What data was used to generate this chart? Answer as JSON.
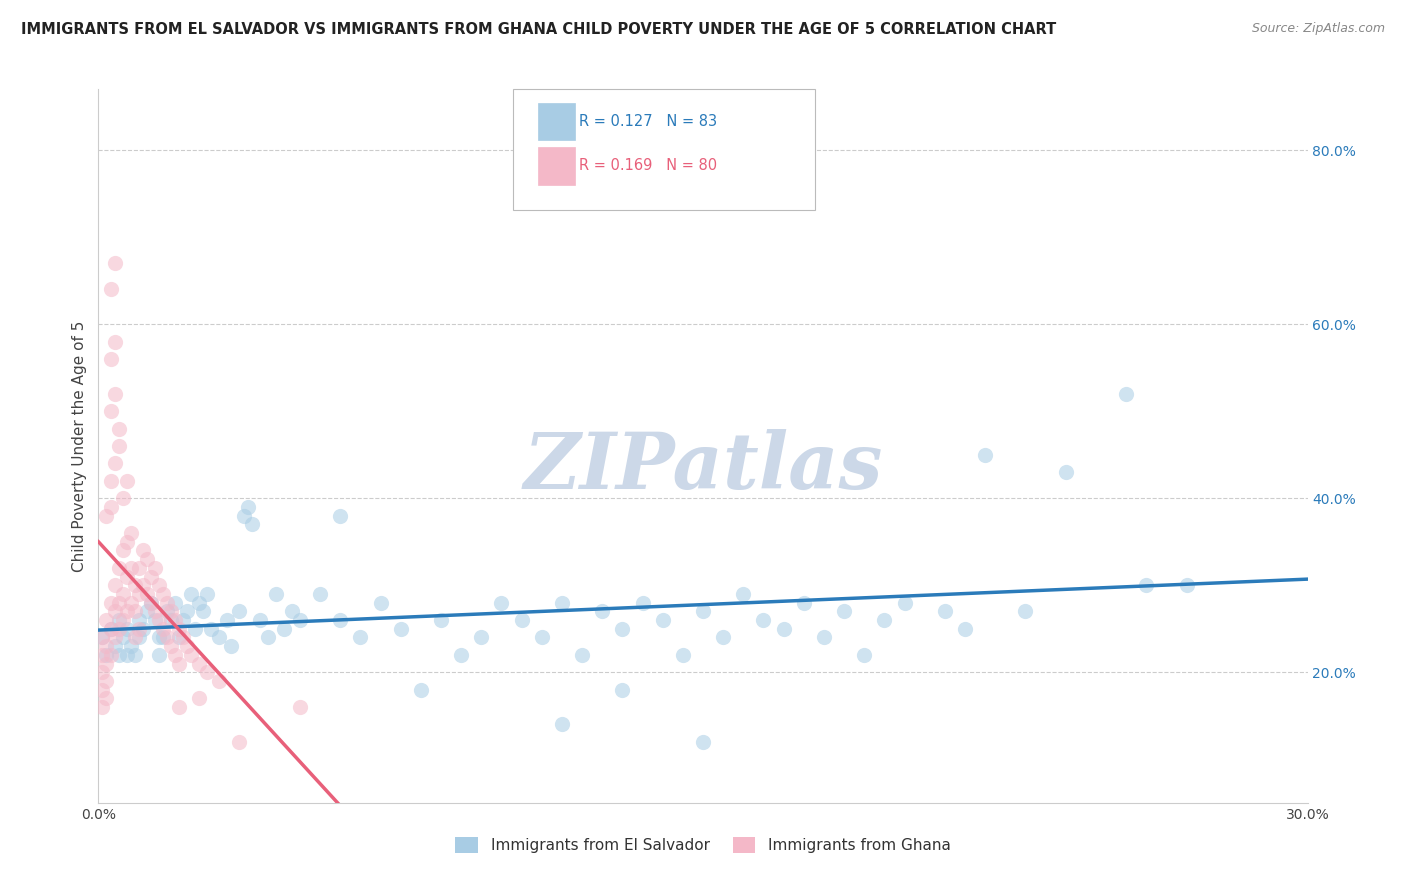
{
  "title": "IMMIGRANTS FROM EL SALVADOR VS IMMIGRANTS FROM GHANA CHILD POVERTY UNDER THE AGE OF 5 CORRELATION CHART",
  "source": "Source: ZipAtlas.com",
  "ylabel": "Child Poverty Under the Age of 5",
  "xlim": [
    0.0,
    0.3
  ],
  "ylim": [
    0.05,
    0.87
  ],
  "ytick_vals": [
    0.2,
    0.4,
    0.6,
    0.8
  ],
  "xtick_vals": [
    0.0,
    0.05,
    0.1,
    0.15,
    0.2,
    0.25,
    0.3
  ],
  "xtick_labels": [
    "0.0%",
    "",
    "",
    "",
    "",
    "",
    "30.0%"
  ],
  "legend_label_blue": "Immigrants from El Salvador",
  "legend_label_pink": "Immigrants from Ghana",
  "blue_color": "#a8cce4",
  "pink_color": "#f4b8c8",
  "blue_line_color": "#2b7bba",
  "pink_line_color": "#e8607a",
  "watermark": "ZIPatlas",
  "watermark_color": "#ccd8e8",
  "scatter_blue": [
    [
      0.001,
      0.24
    ],
    [
      0.002,
      0.22
    ],
    [
      0.003,
      0.25
    ],
    [
      0.004,
      0.23
    ],
    [
      0.005,
      0.26
    ],
    [
      0.005,
      0.22
    ],
    [
      0.006,
      0.24
    ],
    [
      0.007,
      0.25
    ],
    [
      0.007,
      0.22
    ],
    [
      0.008,
      0.23
    ],
    [
      0.009,
      0.22
    ],
    [
      0.01,
      0.26
    ],
    [
      0.01,
      0.24
    ],
    [
      0.011,
      0.25
    ],
    [
      0.012,
      0.27
    ],
    [
      0.013,
      0.28
    ],
    [
      0.014,
      0.26
    ],
    [
      0.015,
      0.24
    ],
    [
      0.015,
      0.22
    ],
    [
      0.016,
      0.24
    ],
    [
      0.017,
      0.27
    ],
    [
      0.018,
      0.26
    ],
    [
      0.019,
      0.28
    ],
    [
      0.02,
      0.24
    ],
    [
      0.021,
      0.26
    ],
    [
      0.022,
      0.27
    ],
    [
      0.023,
      0.29
    ],
    [
      0.024,
      0.25
    ],
    [
      0.025,
      0.28
    ],
    [
      0.026,
      0.27
    ],
    [
      0.027,
      0.29
    ],
    [
      0.028,
      0.25
    ],
    [
      0.03,
      0.24
    ],
    [
      0.032,
      0.26
    ],
    [
      0.033,
      0.23
    ],
    [
      0.035,
      0.27
    ],
    [
      0.036,
      0.38
    ],
    [
      0.037,
      0.39
    ],
    [
      0.038,
      0.37
    ],
    [
      0.04,
      0.26
    ],
    [
      0.042,
      0.24
    ],
    [
      0.044,
      0.29
    ],
    [
      0.046,
      0.25
    ],
    [
      0.048,
      0.27
    ],
    [
      0.05,
      0.26
    ],
    [
      0.055,
      0.29
    ],
    [
      0.06,
      0.38
    ],
    [
      0.06,
      0.26
    ],
    [
      0.065,
      0.24
    ],
    [
      0.07,
      0.28
    ],
    [
      0.075,
      0.25
    ],
    [
      0.08,
      0.18
    ],
    [
      0.085,
      0.26
    ],
    [
      0.09,
      0.22
    ],
    [
      0.095,
      0.24
    ],
    [
      0.1,
      0.28
    ],
    [
      0.105,
      0.26
    ],
    [
      0.11,
      0.24
    ],
    [
      0.115,
      0.28
    ],
    [
      0.12,
      0.22
    ],
    [
      0.125,
      0.27
    ],
    [
      0.13,
      0.25
    ],
    [
      0.135,
      0.28
    ],
    [
      0.14,
      0.26
    ],
    [
      0.145,
      0.22
    ],
    [
      0.15,
      0.27
    ],
    [
      0.155,
      0.24
    ],
    [
      0.16,
      0.29
    ],
    [
      0.165,
      0.26
    ],
    [
      0.17,
      0.25
    ],
    [
      0.175,
      0.28
    ],
    [
      0.18,
      0.24
    ],
    [
      0.185,
      0.27
    ],
    [
      0.19,
      0.22
    ],
    [
      0.195,
      0.26
    ],
    [
      0.2,
      0.28
    ],
    [
      0.21,
      0.27
    ],
    [
      0.215,
      0.25
    ],
    [
      0.22,
      0.45
    ],
    [
      0.23,
      0.27
    ],
    [
      0.24,
      0.43
    ],
    [
      0.255,
      0.52
    ],
    [
      0.26,
      0.3
    ],
    [
      0.27,
      0.3
    ],
    [
      0.115,
      0.14
    ],
    [
      0.13,
      0.18
    ],
    [
      0.15,
      0.12
    ]
  ],
  "scatter_pink": [
    [
      0.001,
      0.24
    ],
    [
      0.001,
      0.22
    ],
    [
      0.001,
      0.2
    ],
    [
      0.001,
      0.18
    ],
    [
      0.002,
      0.26
    ],
    [
      0.002,
      0.23
    ],
    [
      0.002,
      0.21
    ],
    [
      0.002,
      0.19
    ],
    [
      0.003,
      0.28
    ],
    [
      0.003,
      0.25
    ],
    [
      0.003,
      0.22
    ],
    [
      0.004,
      0.3
    ],
    [
      0.004,
      0.27
    ],
    [
      0.004,
      0.24
    ],
    [
      0.005,
      0.32
    ],
    [
      0.005,
      0.28
    ],
    [
      0.005,
      0.25
    ],
    [
      0.006,
      0.34
    ],
    [
      0.006,
      0.29
    ],
    [
      0.006,
      0.26
    ],
    [
      0.007,
      0.35
    ],
    [
      0.007,
      0.31
    ],
    [
      0.007,
      0.27
    ],
    [
      0.008,
      0.36
    ],
    [
      0.008,
      0.32
    ],
    [
      0.008,
      0.28
    ],
    [
      0.009,
      0.3
    ],
    [
      0.009,
      0.27
    ],
    [
      0.009,
      0.24
    ],
    [
      0.01,
      0.32
    ],
    [
      0.01,
      0.29
    ],
    [
      0.01,
      0.25
    ],
    [
      0.011,
      0.34
    ],
    [
      0.011,
      0.3
    ],
    [
      0.012,
      0.33
    ],
    [
      0.012,
      0.29
    ],
    [
      0.013,
      0.31
    ],
    [
      0.013,
      0.28
    ],
    [
      0.014,
      0.32
    ],
    [
      0.014,
      0.27
    ],
    [
      0.015,
      0.3
    ],
    [
      0.015,
      0.26
    ],
    [
      0.016,
      0.29
    ],
    [
      0.016,
      0.25
    ],
    [
      0.017,
      0.28
    ],
    [
      0.017,
      0.24
    ],
    [
      0.018,
      0.27
    ],
    [
      0.018,
      0.23
    ],
    [
      0.019,
      0.26
    ],
    [
      0.019,
      0.22
    ],
    [
      0.02,
      0.25
    ],
    [
      0.02,
      0.21
    ],
    [
      0.021,
      0.24
    ],
    [
      0.022,
      0.23
    ],
    [
      0.023,
      0.22
    ],
    [
      0.025,
      0.21
    ],
    [
      0.027,
      0.2
    ],
    [
      0.03,
      0.19
    ],
    [
      0.003,
      0.42
    ],
    [
      0.004,
      0.44
    ],
    [
      0.005,
      0.46
    ],
    [
      0.003,
      0.5
    ],
    [
      0.004,
      0.52
    ],
    [
      0.005,
      0.48
    ],
    [
      0.003,
      0.56
    ],
    [
      0.004,
      0.58
    ],
    [
      0.003,
      0.64
    ],
    [
      0.004,
      0.67
    ],
    [
      0.002,
      0.38
    ],
    [
      0.003,
      0.39
    ],
    [
      0.006,
      0.4
    ],
    [
      0.007,
      0.42
    ],
    [
      0.001,
      0.16
    ],
    [
      0.002,
      0.17
    ],
    [
      0.02,
      0.16
    ],
    [
      0.025,
      0.17
    ],
    [
      0.035,
      0.12
    ],
    [
      0.05,
      0.16
    ]
  ]
}
